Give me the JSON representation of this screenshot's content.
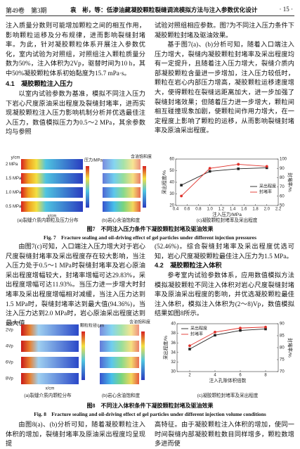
{
  "header": {
    "volume": "第49卷　第3期",
    "running_title": "袁　彬，等：低渗油藏凝胶颗粒裂缝调流模拟方法与注入参数优化设计",
    "page": "· 15 ·"
  },
  "text": {
    "p1": "注入质量分数则可能增加颗粒之间的相互作用，影响颗粒运移及分布规律，进而影响裂缝封堵率。为此，针对凝胶颗粒体系开展注入参数优化，室内试验为对照组，对照组注入颗粒质量分数为50%，注入体积为2Vp，驱替时间为10 h，其中50%凝胶颗粒体系初始黏度为15.7 mPa·s。",
    "h41": "4.1　凝胶颗粒注入压力",
    "p2a": "以室内试验参数为基准，模拟不同注入压力下岩心尺度原油采出程度及裂缝封堵率，进而实现凝胶颗粒注入压力影响机制分析并优选最佳注入压力，数值模拟压力为0.5～2 MPa，其余参数均与参照",
    "p2b": "试验对照组相应参数。图7为不同注入压力条件下凝胶颗粒封堵及驱油效果。",
    "p3": "基于图7(a)、(b)分析可知，随着入口端注入压力增大，裂缝内凝胶颗粒封堵率及采出程度均有一定提升，且随着注入压力增大，裂缝介质内部凝胶颗粒含量进一步增加，注入压力较低时，颗粒在岩心内部压力增高，凝胶颗粒运移速度增大，使得颗粒在裂缝远距离加大，进一步加强了裂缝封堵效果；但随着压力进一步增大，颗粒间相互碰撞现象加剧，使颗粒间作用力增大，在一定程度上影响了颗粒的运移，从而影响裂缝封堵率及原油采出程度。",
    "p4a": "由图7(c)可知，入口端注入压力增大对于岩心尺度裂缝封堵率及采出程度存在较大影响，当注入压力处于0.5～1 MPa时裂缝封堵率及岩心原油采出程度增幅较大，封堵率增幅可达29.83%，采出程度增幅可达11.93%。当压力进一步增大时封堵率及采出程度增幅相对减缓，当注入压力达到1.5 MPa时，裂缝封堵率达到最大值(94.36%)，当注入压力达到2.0 MPa时，岩心原油采出程度达到最大值",
    "p4b": "(52.46%)。综合裂缝封堵率及采出程度优选可知，岩心尺度凝胶颗粒最佳注入压力为1.5 MPa。",
    "h42": "4.2　凝胶颗粒注入体积",
    "p5": "参考室内试验参数体系，应用数值模拟方法模拟凝胶颗粒不同注入体积对岩心尺度裂缝封堵率及原油采出程度的影响，并优选凝胶颗粒最佳注入体积，模拟注入体积为(2～8)Vp，数值模拟结果如图8所示。",
    "p6a": "由图8(a)、(b)分析可知，随着凝胶颗粒注入体积的增加，裂缝封堵率及原油采出程度均呈现提",
    "p6b": "高特征。由于凝胶颗粒注入体积的增加，使同一时间裂缝内部凝胶颗粒数目同样增多，颗粒数增多进而使"
  },
  "figures": [
    {
      "panel_labels": [
        "2 MPa",
        "1.5 MPa",
        "1.0 MPa",
        "0.5 MPa"
      ],
      "bar_a": "压力/MPa",
      "bar_b": "含油饱和度",
      "x_axis": "x/cm",
      "y_axis": "y/cm",
      "sub_a": "(a)裂缝介质内颗粒及压力分布",
      "sub_b": "(b)岩心含油饱和度",
      "sub_c": "(c)凝胶颗粒封堵率及采出程度",
      "caption_cn": "图7　不同注入压力条件下凝胶颗粒封堵及驱油效果",
      "caption_en": "Fig. 7　Fracture sealing and oil-driving effect of gel particles under different injection pressures",
      "chart": {
        "type": "line",
        "xlabel": "注入压力/MPa",
        "ylabel": "采出程度/%",
        "y2label": "封堵率/%",
        "x": [
          0.5,
          1.0,
          1.5,
          2.0
        ],
        "xlim": [
          0.4,
          2.2
        ],
        "xticks": [
          0.4,
          0.6,
          0.8,
          {
            "value": 1.0,
            "label": "1.0"
          },
          1.2,
          1.4,
          1.6,
          1.8,
          {
            "value": 2.0,
            "label": "2.0"
          },
          2.2
        ],
        "ylim": [
          20,
          60
        ],
        "yticks": [
          20,
          30,
          40,
          50,
          60
        ],
        "y2lim": [
          50,
          100
        ],
        "y2ticks": [
          50,
          60,
          70,
          80,
          90,
          100
        ],
        "legend": "center-right",
        "series": [
          {
            "name": "采出程度",
            "color": "#222222",
            "marker": "square",
            "values": [
              37.5,
              49.43,
              51.6,
              52.46
            ]
          },
          {
            "name": "封堵率",
            "color": "#e0302a",
            "marker": "circle",
            "axis": "y2",
            "values": [
              60.2,
              90.03,
              94.36,
              92.1
            ]
          }
        ]
      }
    },
    {
      "panel_labels": [
        "2Vp",
        "4Vp",
        "6Vp",
        "8Vp"
      ],
      "bar_a": "颗粒粒径/μm",
      "bar_b": "含油饱和度",
      "x_axis": "x/cm",
      "y_axis": "y/cm",
      "sub_a": "(a)裂缝介质内颗粒分布",
      "sub_b": "(b)岩心含油饱和度",
      "sub_c": "(c)凝胶颗粒封堵率及采出程度",
      "caption_cn": "图8　不同注入体积条件下凝胶颗粒封堵及驱油效果",
      "caption_en": "Fig. 8　Fracture sealing and oil-driving effect of gel particles under different injection volume conditions",
      "chart": {
        "type": "line",
        "xlabel": "注入孔隙体积倍数",
        "ylabel": "采出程度/%",
        "y2label": "封堵率/%",
        "x": [
          2,
          4,
          6,
          8
        ],
        "xlim": [
          1,
          9
        ],
        "xticks": [
          2,
          4,
          6,
          8
        ],
        "ylim": [
          30,
          40
        ],
        "yticks": [
          30,
          32,
          34,
          36,
          38,
          40
        ],
        "y2lim": [
          70,
          90
        ],
        "y2ticks": [
          70,
          75,
          80,
          85,
          90
        ],
        "legend": "upper-left",
        "series": [
          {
            "name": "采出程度",
            "color": "#222222",
            "marker": "square",
            "values": [
              34.7,
              37.6,
              38.6,
              38.9
            ]
          },
          {
            "name": "封堵率",
            "color": "#e0302a",
            "marker": "circle",
            "axis": "y2",
            "values": [
              80.8,
              86.5,
              88.2,
              88.6
            ]
          }
        ]
      }
    }
  ]
}
